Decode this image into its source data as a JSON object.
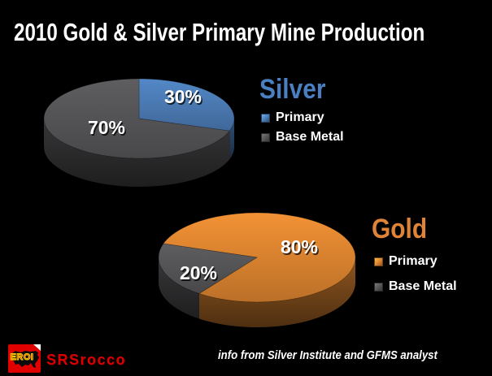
{
  "title": "2010 Gold & Silver Primary Mine Production",
  "colors": {
    "background": "#000000",
    "title_text": "#ffffff"
  },
  "chart_data": [
    {
      "type": "pie",
      "style": "3d-pie",
      "title": "Silver",
      "title_color": "#4a7fc1",
      "categories": [
        "Primary",
        "Base Metal"
      ],
      "values": [
        30,
        70
      ],
      "labels": [
        "30%",
        "70%"
      ],
      "colors": [
        "#4a79b2",
        "#545456"
      ],
      "start_angle": 0,
      "legend_position": "right",
      "labels_on_slices": true
    },
    {
      "type": "pie",
      "style": "3d-pie",
      "title": "Gold",
      "title_color": "#df8338",
      "categories": [
        "Primary",
        "Base Metal"
      ],
      "values": [
        80,
        20
      ],
      "labels": [
        "80%",
        "20%"
      ],
      "colors": [
        "#d9822f",
        "#545456"
      ],
      "start_angle": 288,
      "legend_position": "right",
      "labels_on_slices": true
    }
  ],
  "footer": {
    "logo_text": "EROI",
    "brand": "SRSrocco",
    "attribution": "info from Silver Institute and GFMS analyst"
  }
}
